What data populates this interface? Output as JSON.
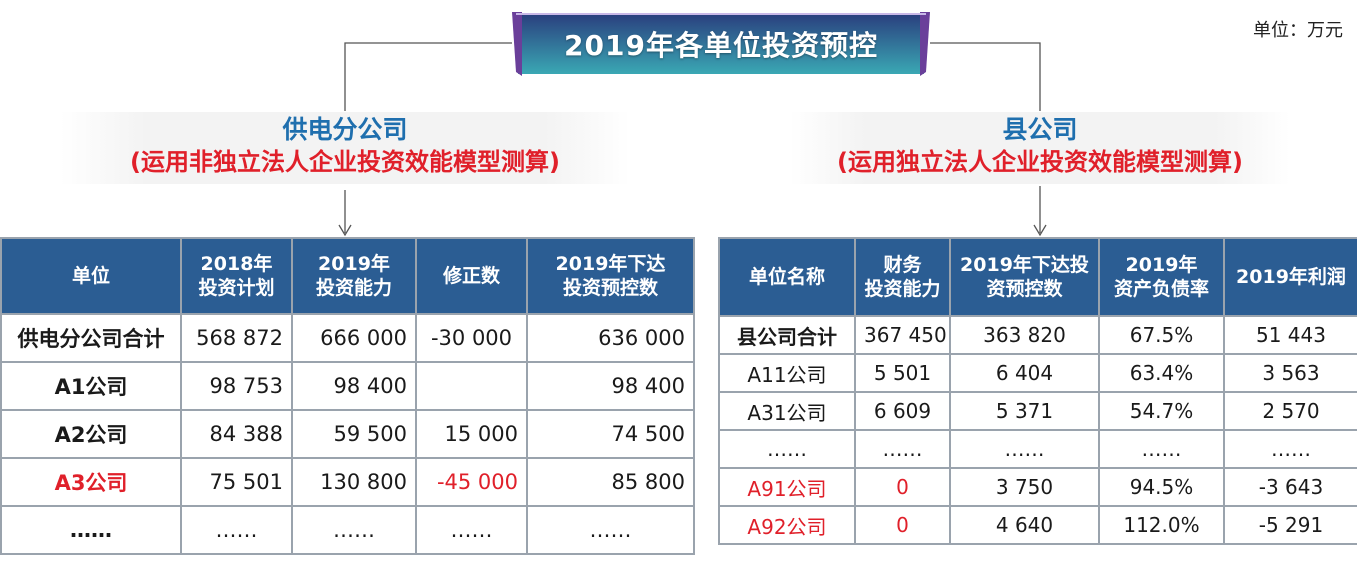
{
  "title": "2019年各单位投资预控",
  "unit_note": "单位：万元",
  "left": {
    "name": "供电分公司",
    "method": "(运用非独立法人企业投资效能模型测算)",
    "headers": [
      "单位",
      "2018年\n投资计划",
      "2019年\n投资能力",
      "修正数",
      "2019年下达\n投资预控数"
    ],
    "rows": [
      [
        "供电分公司合计",
        "568 872",
        "666 000",
        "-30 000",
        "636 000"
      ],
      [
        "A1公司",
        "98 753",
        "98 400",
        "",
        "98 400"
      ],
      [
        "A2公司",
        "84 388",
        "59 500",
        "15 000",
        "74 500"
      ],
      [
        "A3公司",
        "75 501",
        "130 800",
        "-45 000",
        "85 800"
      ],
      [
        "……",
        "……",
        "……",
        "……",
        "……"
      ]
    ]
  },
  "right": {
    "name": "县公司",
    "method": "(运用独立法人企业投资效能模型测算)",
    "headers": [
      "单位名称",
      "财务\n投资能力",
      "2019年下达投\n资预控数",
      "2019年\n资产负债率",
      "2019年利润"
    ],
    "rows": [
      [
        "县公司合计",
        "367 450",
        "363 820",
        "67.5%",
        "51 443"
      ],
      [
        "A11公司",
        "5 501",
        "6 404",
        "63.4%",
        "3 563"
      ],
      [
        "A31公司",
        "6 609",
        "5 371",
        "54.7%",
        "2 570"
      ],
      [
        "……",
        "……",
        "……",
        "……",
        "……"
      ],
      [
        "A91公司",
        "0",
        "3 750",
        "94.5%",
        "-3 643"
      ],
      [
        "A92公司",
        "0",
        "4 640",
        "112.0%",
        "-5 291"
      ]
    ]
  },
  "colors": {
    "header_bg": "#2b5d93",
    "highlight_red": "#e0202a",
    "section_blue": "#1f6fae",
    "banner_gradient": [
      "#2a3f7e",
      "#3aa8b4"
    ]
  }
}
